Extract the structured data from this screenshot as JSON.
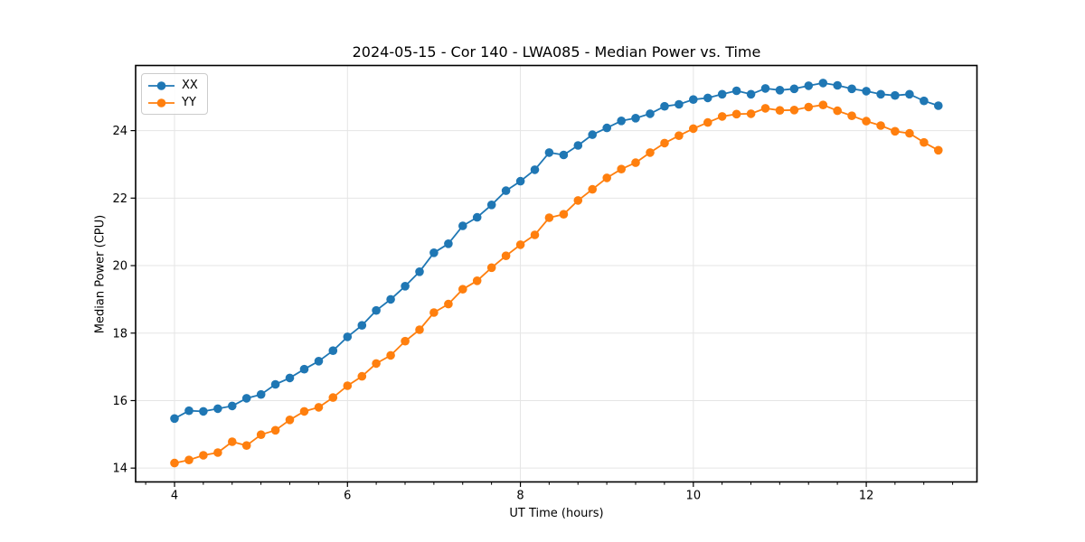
{
  "figure": {
    "background": "#ffffff"
  },
  "chart_data": {
    "type": "line",
    "title": "2024-05-15 - Cor 140 - LWA085 - Median Power vs. Time",
    "xlabel": "UT Time (hours)",
    "ylabel": "Median Power (CPU)",
    "xlim": [
      3.55,
      13.28
    ],
    "ylim": [
      13.59,
      25.93
    ],
    "xticks": [
      4,
      6,
      8,
      10,
      12
    ],
    "yticks": [
      14,
      16,
      18,
      20,
      22,
      24
    ],
    "x_minor_tick_step": 0.3333,
    "grid": true,
    "grid_color": "#e5e5e5",
    "legend_position": "upper left",
    "marker": "circle",
    "x": [
      4.0,
      4.167,
      4.333,
      4.5,
      4.667,
      4.833,
      5.0,
      5.167,
      5.333,
      5.5,
      5.667,
      5.833,
      6.0,
      6.167,
      6.333,
      6.5,
      6.667,
      6.833,
      7.0,
      7.167,
      7.333,
      7.5,
      7.667,
      7.833,
      8.0,
      8.167,
      8.333,
      8.5,
      8.667,
      8.833,
      9.0,
      9.167,
      9.333,
      9.5,
      9.667,
      9.833,
      10.0,
      10.167,
      10.333,
      10.5,
      10.667,
      10.833,
      11.0,
      11.167,
      11.333,
      11.5,
      11.667,
      11.833,
      12.0,
      12.167,
      12.333,
      12.5,
      12.667,
      12.833
    ],
    "series": [
      {
        "name": "XX",
        "color": "#1f77b4",
        "values": [
          15.47,
          15.7,
          15.68,
          15.76,
          15.84,
          16.07,
          16.18,
          16.48,
          16.67,
          16.93,
          17.17,
          17.48,
          17.89,
          18.23,
          18.67,
          19.0,
          19.39,
          19.82,
          20.38,
          20.65,
          21.18,
          21.43,
          21.8,
          22.22,
          22.5,
          22.84,
          23.35,
          23.28,
          23.56,
          23.88,
          24.08,
          24.29,
          24.37,
          24.5,
          24.72,
          24.78,
          24.92,
          24.97,
          25.08,
          25.18,
          25.08,
          25.25,
          25.2,
          25.24,
          25.33,
          25.41,
          25.34,
          25.24,
          25.17,
          25.08,
          25.04,
          25.08,
          24.88,
          24.74
        ]
      },
      {
        "name": "YY",
        "color": "#ff7f0e",
        "values": [
          14.15,
          14.24,
          14.38,
          14.46,
          14.78,
          14.67,
          14.99,
          15.12,
          15.43,
          15.68,
          15.8,
          16.09,
          16.44,
          16.72,
          17.1,
          17.34,
          17.76,
          18.1,
          18.61,
          18.86,
          19.3,
          19.55,
          19.94,
          20.29,
          20.62,
          20.91,
          21.42,
          21.52,
          21.93,
          22.26,
          22.6,
          22.86,
          23.05,
          23.35,
          23.63,
          23.85,
          24.06,
          24.24,
          24.42,
          24.49,
          24.5,
          24.66,
          24.6,
          24.61,
          24.7,
          24.76,
          24.59,
          24.44,
          24.28,
          24.15,
          23.98,
          23.92,
          23.65,
          23.42
        ]
      }
    ]
  }
}
